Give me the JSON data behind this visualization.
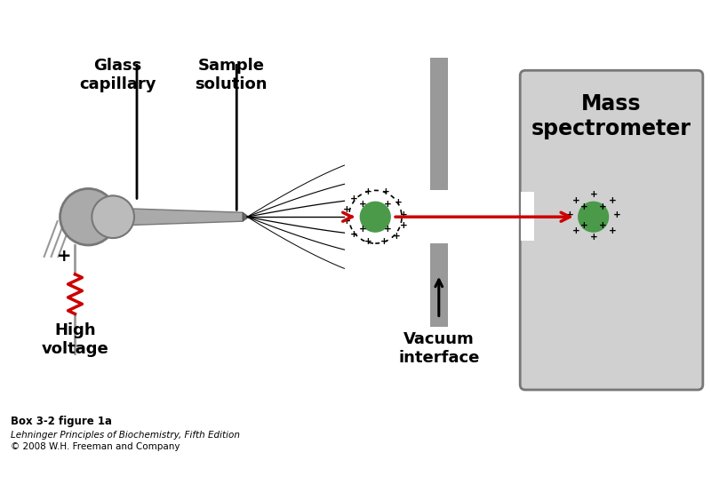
{
  "bg_color": "#ffffff",
  "label_glass_capillary": "Glass\ncapillary",
  "label_sample_solution": "Sample\nsolution",
  "label_high_voltage": "High\nvoltage",
  "label_mass_spec": "Mass\nspectrometer",
  "label_vacuum": "Vacuum\ninterface",
  "label_box": "Box 3-2 figure 1a",
  "label_book": "Lehninger Principles of Biochemistry, Fifth Edition",
  "label_copy": "© 2008 W.H. Freeman and Company",
  "arrow_color": "#cc0000",
  "green_color": "#4a9a4a",
  "dark_gray": "#777777",
  "mid_gray": "#999999",
  "light_gray": "#bbbbbb",
  "box_gray": "#d0d0d0",
  "capillary_color": "#aaaaaa"
}
